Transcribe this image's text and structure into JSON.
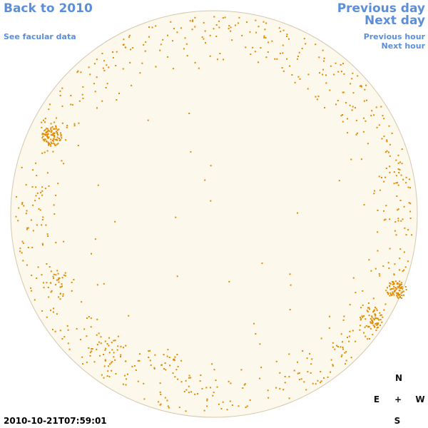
{
  "nav": {
    "back": "Back to 2010",
    "facular": "See facular data",
    "previous_day": "Previous day",
    "next_day": "Next day",
    "previous_hour": "Previous hour",
    "next_hour": "Next hour"
  },
  "compass": {
    "north": "N",
    "east": "E",
    "center": "+",
    "west": "W",
    "south": "S"
  },
  "timestamp": "2010-10-21T07:59:01",
  "colors": {
    "link": "#5b8fd9",
    "disc_fill": "#fdf8ec",
    "disc_border": "#d4c7ad",
    "facula": "#e08a00"
  }
}
